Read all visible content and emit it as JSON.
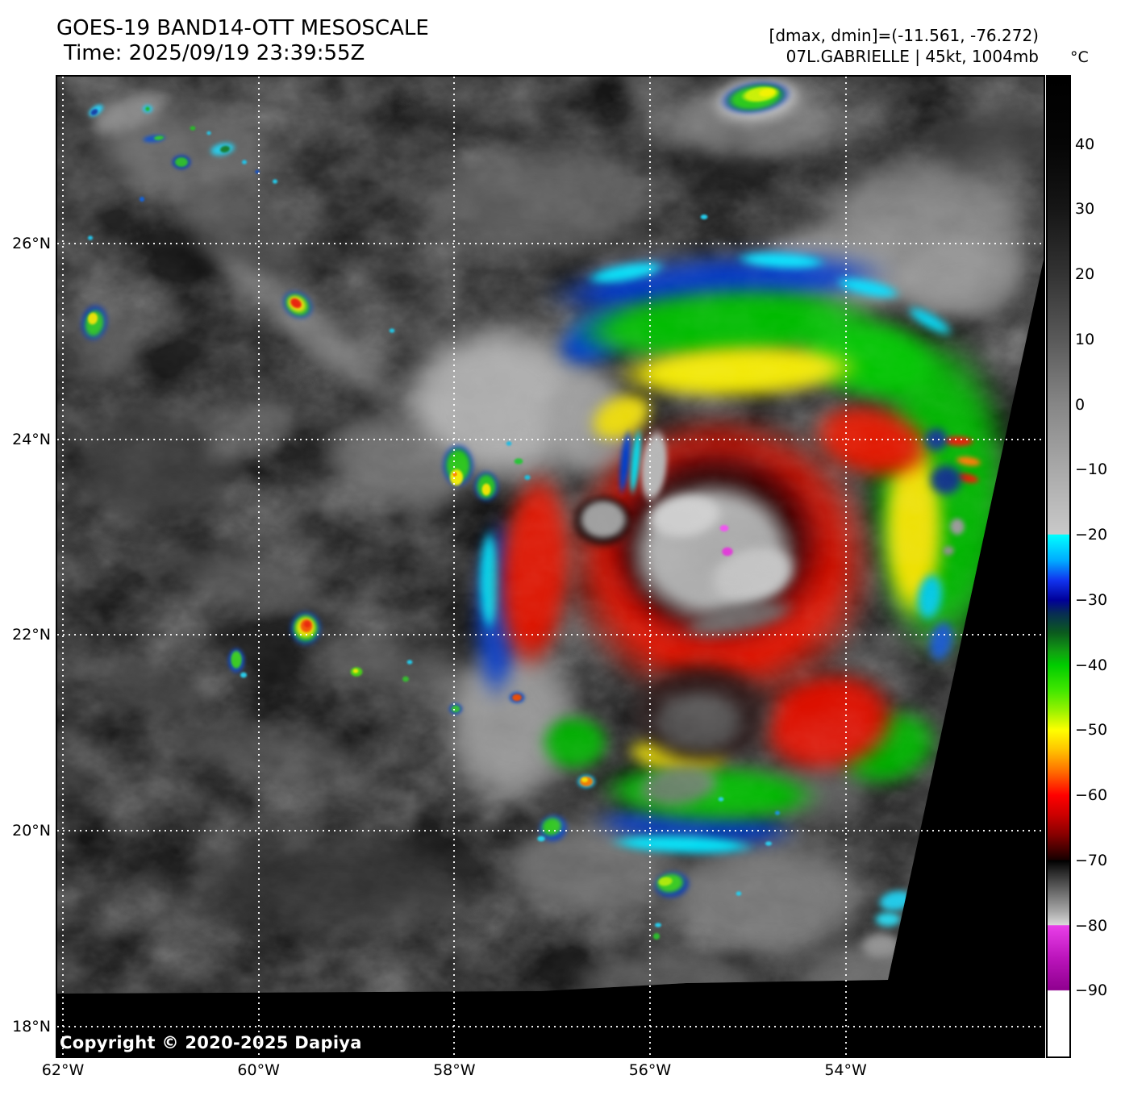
{
  "header": {
    "title": "GOES-19 BAND14-OTT MESOSCALE",
    "time_line": "Time: 2025/09/19 23:39:55Z",
    "drange_line": "[dmax, dmin]=(-11.561, -76.272)",
    "storm_line": "07L.GABRIELLE | 45kt, 1004mb"
  },
  "colorbar": {
    "unit_label": "°C",
    "value_max": 50.35,
    "value_min": -100.1,
    "ticks": [
      {
        "label": "40",
        "value": 40
      },
      {
        "label": "30",
        "value": 30
      },
      {
        "label": "20",
        "value": 20
      },
      {
        "label": "10",
        "value": 10
      },
      {
        "label": "0",
        "value": 0
      },
      {
        "label": "−10",
        "value": -10
      },
      {
        "label": "−20",
        "value": -20
      },
      {
        "label": "−30",
        "value": -30
      },
      {
        "label": "−40",
        "value": -40
      },
      {
        "label": "−50",
        "value": -50
      },
      {
        "label": "−60",
        "value": -60
      },
      {
        "label": "−70",
        "value": -70
      },
      {
        "label": "−80",
        "value": -80
      },
      {
        "label": "−90",
        "value": -90
      }
    ],
    "gradient_stops": [
      [
        50.35,
        "#000000"
      ],
      [
        40,
        "#050505"
      ],
      [
        30,
        "#161616"
      ],
      [
        20,
        "#333333"
      ],
      [
        10,
        "#595959"
      ],
      [
        0,
        "#868686"
      ],
      [
        -10,
        "#a9a9a9"
      ],
      [
        -19.9,
        "#c9c9c9"
      ],
      [
        -20,
        "#00ffff"
      ],
      [
        -24,
        "#00aaff"
      ],
      [
        -27,
        "#1133ee"
      ],
      [
        -30,
        "#000099"
      ],
      [
        -32,
        "#072b55"
      ],
      [
        -35,
        "#0b5a1e"
      ],
      [
        -38,
        "#11a011"
      ],
      [
        -40,
        "#00cc00"
      ],
      [
        -44,
        "#44e800"
      ],
      [
        -47,
        "#99f200"
      ],
      [
        -50,
        "#ffff00"
      ],
      [
        -53,
        "#ffc400"
      ],
      [
        -56,
        "#ff7700"
      ],
      [
        -60,
        "#ff0000"
      ],
      [
        -63,
        "#cc0000"
      ],
      [
        -66,
        "#880000"
      ],
      [
        -69.9,
        "#170000"
      ],
      [
        -70,
        "#000000"
      ],
      [
        -72,
        "#2e2e2e"
      ],
      [
        -75,
        "#6e6e6e"
      ],
      [
        -78,
        "#ababab"
      ],
      [
        -79.9,
        "#d9d9d9"
      ],
      [
        -80,
        "#e93fe9"
      ],
      [
        -85,
        "#bb14bb"
      ],
      [
        -89.9,
        "#8f008f"
      ],
      [
        -90,
        "#ffffff"
      ],
      [
        -100.1,
        "#ffffff"
      ]
    ]
  },
  "map": {
    "copyright": "Copyright © 2020-2025 Dapiya",
    "lat_axis": {
      "top_value": 27.705,
      "bottom_value": 17.694,
      "ticks": [
        {
          "label": "26°N",
          "value": 26
        },
        {
          "label": "24°N",
          "value": 24
        },
        {
          "label": "22°N",
          "value": 22
        },
        {
          "label": "20°N",
          "value": 20
        },
        {
          "label": "18°N",
          "value": 18
        }
      ]
    },
    "lon_axis": {
      "left_value": -62.058,
      "right_value": -51.977,
      "ticks": [
        {
          "label": "62°W",
          "value": -62
        },
        {
          "label": "60°W",
          "value": -60
        },
        {
          "label": "58°W",
          "value": -58
        },
        {
          "label": "56°W",
          "value": -56
        },
        {
          "label": "54°W",
          "value": -54
        }
      ]
    }
  }
}
